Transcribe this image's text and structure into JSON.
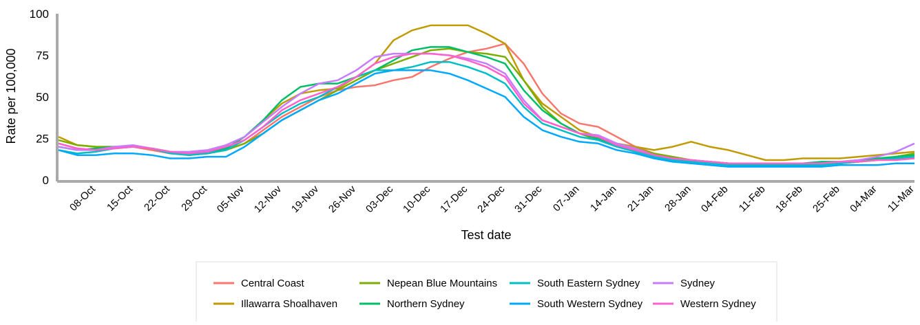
{
  "chart_data": {
    "type": "line",
    "y_label": "Rate per 100,000",
    "x_label": "Test date",
    "categories": [
      null,
      null,
      "08-Oct",
      null,
      "15-Oct",
      null,
      "22-Oct",
      null,
      "29-Oct",
      null,
      "05-Nov",
      null,
      "12-Nov",
      null,
      "19-Nov",
      null,
      "26-Nov",
      null,
      "03-Dec",
      null,
      "10-Dec",
      null,
      "17-Dec",
      null,
      "24-Dec",
      null,
      "31-Dec",
      null,
      "07-Jan",
      null,
      "14-Jan",
      null,
      "21-Jan",
      null,
      "28-Jan",
      null,
      "04-Feb",
      null,
      "11-Feb",
      null,
      "18-Feb",
      null,
      "25-Feb",
      null,
      "04-Mar",
      null,
      "11-Mar"
    ],
    "ylim": [
      0,
      100
    ],
    "yticks": [
      0,
      25,
      50,
      75,
      100
    ],
    "series": [
      {
        "name": "Central Coast",
        "color": "#f8766d",
        "values": [
          22,
          19,
          18,
          19,
          20,
          18,
          16,
          15,
          16,
          18,
          22,
          30,
          38,
          44,
          50,
          54,
          56,
          57,
          60,
          62,
          68,
          73,
          77,
          79,
          82,
          70,
          52,
          40,
          34,
          32,
          26,
          20,
          16,
          13,
          12,
          11,
          10,
          9,
          9,
          9,
          9,
          10,
          10,
          11,
          12,
          13,
          13
        ]
      },
      {
        "name": "Illawarra Shoalhaven",
        "color": "#c09a00",
        "values": [
          26,
          21,
          20,
          20,
          20,
          19,
          17,
          16,
          17,
          19,
          26,
          36,
          46,
          52,
          54,
          55,
          62,
          70,
          84,
          90,
          93,
          93,
          93,
          88,
          82,
          60,
          46,
          38,
          30,
          26,
          22,
          20,
          18,
          20,
          23,
          20,
          18,
          15,
          12,
          12,
          13,
          13,
          13,
          14,
          15,
          16,
          17
        ]
      },
      {
        "name": "Nepean Blue Mountains",
        "color": "#7cae00",
        "values": [
          24,
          21,
          20,
          20,
          20,
          19,
          17,
          15,
          16,
          18,
          22,
          28,
          36,
          42,
          48,
          54,
          60,
          66,
          70,
          74,
          78,
          79,
          77,
          76,
          74,
          60,
          44,
          34,
          28,
          24,
          21,
          19,
          16,
          14,
          12,
          11,
          10,
          10,
          10,
          10,
          10,
          10,
          10,
          11,
          12,
          14,
          16
        ]
      },
      {
        "name": "Northern Sydney",
        "color": "#00be67",
        "values": [
          20,
          18,
          19,
          20,
          20,
          19,
          17,
          16,
          17,
          19,
          26,
          36,
          48,
          56,
          58,
          58,
          62,
          66,
          72,
          78,
          80,
          80,
          77,
          74,
          70,
          54,
          42,
          34,
          28,
          25,
          21,
          18,
          15,
          13,
          12,
          11,
          10,
          10,
          10,
          10,
          10,
          11,
          11,
          12,
          13,
          14,
          15
        ]
      },
      {
        "name": "South Eastern Sydney",
        "color": "#00bfc4",
        "values": [
          18,
          16,
          17,
          19,
          20,
          19,
          16,
          15,
          16,
          18,
          24,
          32,
          40,
          46,
          50,
          56,
          62,
          66,
          66,
          68,
          71,
          71,
          68,
          64,
          58,
          44,
          34,
          30,
          26,
          24,
          20,
          17,
          14,
          12,
          11,
          10,
          9,
          9,
          9,
          9,
          9,
          9,
          10,
          11,
          12,
          13,
          14
        ]
      },
      {
        "name": "South Western Sydney",
        "color": "#00a9ff",
        "values": [
          18,
          15,
          15,
          16,
          16,
          15,
          13,
          13,
          14,
          14,
          20,
          28,
          36,
          42,
          48,
          52,
          58,
          64,
          66,
          66,
          66,
          64,
          60,
          55,
          50,
          38,
          30,
          26,
          23,
          22,
          18,
          16,
          13,
          11,
          10,
          9,
          8,
          8,
          8,
          8,
          8,
          8,
          9,
          9,
          9,
          10,
          10
        ]
      },
      {
        "name": "Sydney",
        "color": "#c77cff",
        "values": [
          20,
          18,
          18,
          20,
          21,
          19,
          17,
          17,
          18,
          21,
          26,
          35,
          44,
          52,
          58,
          60,
          66,
          74,
          76,
          76,
          76,
          75,
          73,
          70,
          64,
          48,
          36,
          32,
          28,
          27,
          22,
          19,
          15,
          13,
          12,
          11,
          10,
          10,
          10,
          10,
          10,
          10,
          11,
          12,
          14,
          17,
          22
        ]
      },
      {
        "name": "Western Sydney",
        "color": "#ff61cc",
        "values": [
          22,
          19,
          18,
          19,
          20,
          19,
          17,
          16,
          17,
          20,
          24,
          32,
          42,
          48,
          52,
          56,
          62,
          70,
          74,
          76,
          76,
          75,
          72,
          68,
          62,
          46,
          36,
          32,
          28,
          26,
          21,
          18,
          15,
          13,
          12,
          11,
          10,
          10,
          10,
          10,
          10,
          10,
          11,
          11,
          12,
          12,
          13
        ]
      }
    ]
  }
}
